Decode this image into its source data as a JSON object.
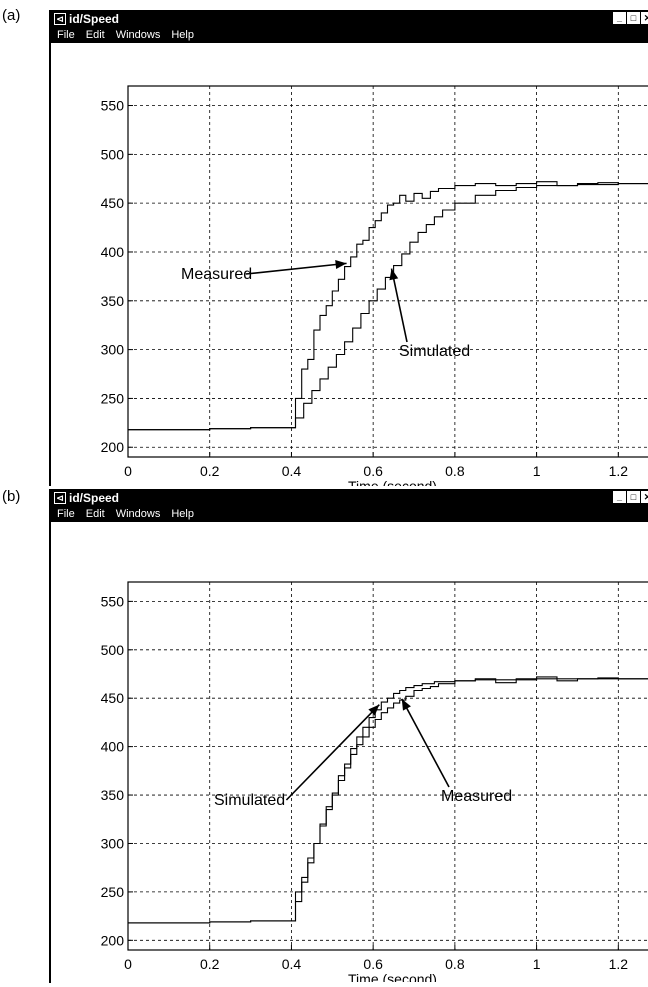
{
  "panels": [
    {
      "label": "(a)",
      "window": {
        "title": "id/Speed",
        "menu": [
          "File",
          "Edit",
          "Windows",
          "Help"
        ]
      },
      "annotations": [
        {
          "text": "Measured",
          "target": "measured"
        },
        {
          "text": "Simulated",
          "target": "simulated"
        }
      ]
    },
    {
      "label": "(b)",
      "window": {
        "title": "id/Speed",
        "menu": [
          "File",
          "Edit",
          "Windows",
          "Help"
        ]
      },
      "annotations": [
        {
          "text": "Simulated",
          "target": "simulated"
        },
        {
          "text": "Measured",
          "target": "measured"
        }
      ]
    }
  ],
  "chart_data": [
    {
      "type": "line",
      "title": "",
      "xlabel": "Time (second)",
      "ylabel": "",
      "xlim": [
        0,
        1.28
      ],
      "ylim": [
        190,
        570
      ],
      "xticks": [
        0,
        0.2,
        0.4,
        0.6,
        0.8,
        1,
        1.2
      ],
      "xtick_labels": [
        "0",
        "0.2",
        "0.4",
        "0.6",
        "0.8",
        "1",
        "1.2"
      ],
      "yticks": [
        200,
        250,
        300,
        350,
        400,
        450,
        500,
        550
      ],
      "ytick_labels": [
        "200",
        "250",
        "300",
        "350",
        "400",
        "450",
        "500",
        "550"
      ],
      "grid": true,
      "series": [
        {
          "name": "Measured",
          "x": [
            0.0,
            0.1,
            0.2,
            0.3,
            0.4,
            0.41,
            0.425,
            0.44,
            0.455,
            0.47,
            0.485,
            0.5,
            0.515,
            0.53,
            0.545,
            0.56,
            0.575,
            0.59,
            0.605,
            0.62,
            0.635,
            0.65,
            0.665,
            0.68,
            0.7,
            0.72,
            0.74,
            0.76,
            0.8,
            0.85,
            0.9,
            0.95,
            1.0,
            1.05,
            1.1,
            1.15,
            1.2,
            1.28
          ],
          "y": [
            218,
            218,
            219,
            220,
            220,
            250,
            280,
            290,
            320,
            335,
            345,
            360,
            372,
            385,
            395,
            408,
            412,
            425,
            432,
            440,
            448,
            450,
            458,
            452,
            460,
            455,
            462,
            465,
            468,
            470,
            468,
            470,
            472,
            468,
            470,
            471,
            470,
            470
          ]
        },
        {
          "name": "Simulated",
          "x": [
            0.0,
            0.1,
            0.2,
            0.3,
            0.4,
            0.41,
            0.43,
            0.45,
            0.47,
            0.49,
            0.51,
            0.53,
            0.55,
            0.57,
            0.59,
            0.61,
            0.63,
            0.65,
            0.67,
            0.69,
            0.71,
            0.73,
            0.75,
            0.77,
            0.8,
            0.85,
            0.9,
            0.95,
            1.0,
            1.1,
            1.2,
            1.28
          ],
          "y": [
            218,
            218,
            219,
            220,
            220,
            230,
            245,
            258,
            270,
            282,
            295,
            308,
            322,
            337,
            350,
            362,
            374,
            386,
            398,
            410,
            420,
            428,
            436,
            443,
            450,
            458,
            463,
            466,
            468,
            469,
            470,
            470
          ]
        }
      ]
    },
    {
      "type": "line",
      "title": "",
      "xlabel": "Time (second)",
      "ylabel": "",
      "xlim": [
        0,
        1.28
      ],
      "ylim": [
        190,
        570
      ],
      "xticks": [
        0,
        0.2,
        0.4,
        0.6,
        0.8,
        1,
        1.2
      ],
      "xtick_labels": [
        "0",
        "0.2",
        "0.4",
        "0.6",
        "0.8",
        "1",
        "1.2"
      ],
      "yticks": [
        200,
        250,
        300,
        350,
        400,
        450,
        500,
        550
      ],
      "ytick_labels": [
        "200",
        "250",
        "300",
        "350",
        "400",
        "450",
        "500",
        "550"
      ],
      "grid": true,
      "series": [
        {
          "name": "Measured",
          "x": [
            0.0,
            0.1,
            0.2,
            0.3,
            0.4,
            0.41,
            0.425,
            0.44,
            0.455,
            0.47,
            0.485,
            0.5,
            0.515,
            0.53,
            0.545,
            0.56,
            0.575,
            0.59,
            0.605,
            0.62,
            0.635,
            0.65,
            0.665,
            0.68,
            0.7,
            0.72,
            0.74,
            0.76,
            0.8,
            0.85,
            0.9,
            0.95,
            1.0,
            1.05,
            1.1,
            1.15,
            1.2,
            1.28
          ],
          "y": [
            218,
            218,
            219,
            220,
            220,
            240,
            260,
            280,
            300,
            318,
            335,
            350,
            365,
            378,
            392,
            402,
            410,
            420,
            428,
            435,
            440,
            445,
            448,
            452,
            458,
            460,
            462,
            465,
            468,
            470,
            466,
            470,
            472,
            468,
            470,
            471,
            470,
            470
          ]
        },
        {
          "name": "Simulated",
          "x": [
            0.0,
            0.1,
            0.2,
            0.3,
            0.4,
            0.41,
            0.425,
            0.44,
            0.455,
            0.47,
            0.485,
            0.5,
            0.515,
            0.53,
            0.545,
            0.56,
            0.575,
            0.59,
            0.605,
            0.62,
            0.635,
            0.65,
            0.665,
            0.68,
            0.7,
            0.72,
            0.75,
            0.8,
            0.85,
            0.9,
            1.0,
            1.1,
            1.2,
            1.28
          ],
          "y": [
            218,
            218,
            219,
            220,
            220,
            250,
            265,
            285,
            300,
            320,
            338,
            352,
            370,
            382,
            398,
            410,
            420,
            430,
            438,
            446,
            450,
            455,
            458,
            461,
            463,
            465,
            467,
            468,
            469,
            469,
            470,
            470,
            470,
            470
          ]
        }
      ]
    }
  ]
}
